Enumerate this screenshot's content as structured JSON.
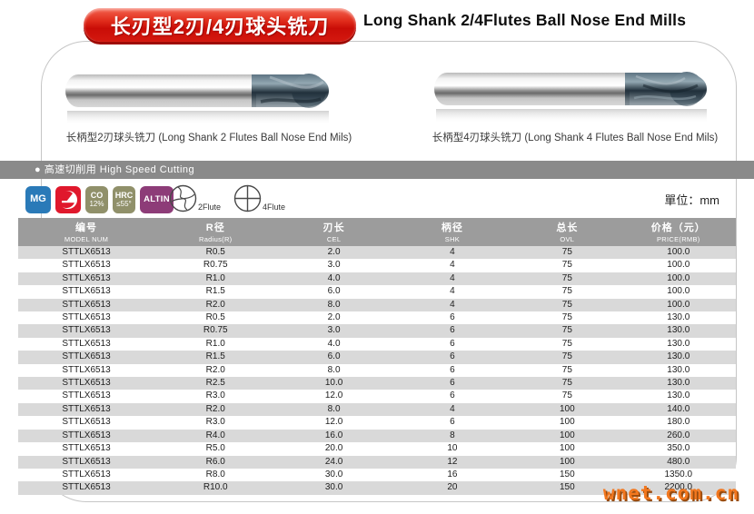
{
  "header": {
    "title_cn": "长刃型2刃/4刃球头铣刀",
    "title_en": "Long Shank 2/4Flutes Ball Nose End Mills"
  },
  "products": [
    {
      "caption": "长柄型2刃球头铣刀 (Long Shank 2 Flutes Ball Nose End Mils)"
    },
    {
      "caption": "长柄型4刃球头铣刀 (Long Shank 4 Flutes Ball Nose End Mils)"
    }
  ],
  "feature_bar": {
    "label": "● 高速切削用 High Speed Cutting"
  },
  "badges": {
    "mg": {
      "label": "MG",
      "color": "#2a7ab8"
    },
    "coating_logo": {
      "color": "#e0182c"
    },
    "co": {
      "line1": "CO",
      "line2": "12%",
      "color": "#90906a"
    },
    "hrc": {
      "line1": "HRC",
      "line2": "≤55°",
      "color": "#90906a"
    },
    "altin": {
      "label": "ALTIN",
      "color": "#8d3c78"
    }
  },
  "flutes": [
    {
      "label": "2Flute"
    },
    {
      "label": "4Flute"
    }
  ],
  "unit_label": "單位：mm",
  "table": {
    "columns": [
      {
        "cn": "编号",
        "en": "MODEL NUM"
      },
      {
        "cn": "R径",
        "en": "Radius(R)"
      },
      {
        "cn": "刃长",
        "en": "CEL"
      },
      {
        "cn": "柄径",
        "en": "SHK"
      },
      {
        "cn": "总长",
        "en": "OVL"
      },
      {
        "cn": "价格（元）",
        "en": "PRICE(RMB)"
      }
    ],
    "rows": [
      [
        "STTLX6513",
        "R0.5",
        "2.0",
        "4",
        "75",
        "100.0"
      ],
      [
        "STTLX6513",
        "R0.75",
        "3.0",
        "4",
        "75",
        "100.0"
      ],
      [
        "STTLX6513",
        "R1.0",
        "4.0",
        "4",
        "75",
        "100.0"
      ],
      [
        "STTLX6513",
        "R1.5",
        "6.0",
        "4",
        "75",
        "100.0"
      ],
      [
        "STTLX6513",
        "R2.0",
        "8.0",
        "4",
        "75",
        "100.0"
      ],
      [
        "STTLX6513",
        "R0.5",
        "2.0",
        "6",
        "75",
        "130.0"
      ],
      [
        "STTLX6513",
        "R0.75",
        "3.0",
        "6",
        "75",
        "130.0"
      ],
      [
        "STTLX6513",
        "R1.0",
        "4.0",
        "6",
        "75",
        "130.0"
      ],
      [
        "STTLX6513",
        "R1.5",
        "6.0",
        "6",
        "75",
        "130.0"
      ],
      [
        "STTLX6513",
        "R2.0",
        "8.0",
        "6",
        "75",
        "130.0"
      ],
      [
        "STTLX6513",
        "R2.5",
        "10.0",
        "6",
        "75",
        "130.0"
      ],
      [
        "STTLX6513",
        "R3.0",
        "12.0",
        "6",
        "75",
        "130.0"
      ],
      [
        "STTLX6513",
        "R2.0",
        "8.0",
        "4",
        "100",
        "140.0"
      ],
      [
        "STTLX6513",
        "R3.0",
        "12.0",
        "6",
        "100",
        "180.0"
      ],
      [
        "STTLX6513",
        "R4.0",
        "16.0",
        "8",
        "100",
        "260.0"
      ],
      [
        "STTLX6513",
        "R5.0",
        "20.0",
        "10",
        "100",
        "350.0"
      ],
      [
        "STTLX6513",
        "R6.0",
        "24.0",
        "12",
        "100",
        "480.0"
      ],
      [
        "STTLX6513",
        "R8.0",
        "30.0",
        "16",
        "150",
        "1350.0"
      ],
      [
        "STTLX6513",
        "R10.0",
        "30.0",
        "20",
        "150",
        "2200.0"
      ]
    ]
  },
  "watermark": "wnet.com.cn"
}
